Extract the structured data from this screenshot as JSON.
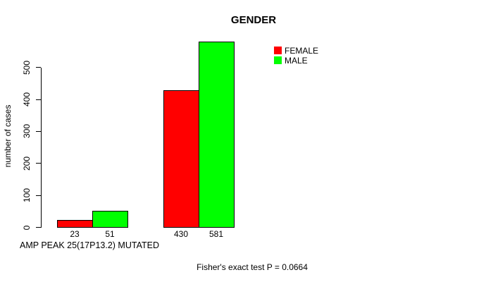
{
  "chart_data": {
    "type": "bar",
    "title": "GENDER",
    "ylabel": "number of cases",
    "xlabel": "AMP PEAK 25(17P13.2) MUTATED",
    "annotation": "Fisher's exact test P = 0.0664",
    "series": [
      {
        "name": "FEMALE",
        "color": "#ff0000",
        "values": [
          23,
          430
        ]
      },
      {
        "name": "MALE",
        "color": "#00ff00",
        "values": [
          51,
          581
        ]
      }
    ],
    "bar_tick_labels": [
      "23",
      "51",
      "430",
      "581"
    ],
    "yticks": [
      0,
      100,
      200,
      300,
      400,
      500
    ],
    "ylim": [
      0,
      581
    ],
    "grid": false,
    "legend_position": "top-right"
  }
}
